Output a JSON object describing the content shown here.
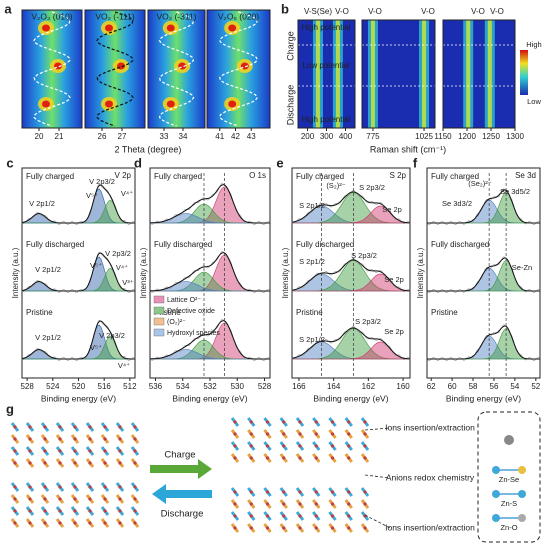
{
  "a": {
    "label": "a",
    "titles": [
      "V₂O₃ (010)",
      "VO₂ (-111)",
      "VO₂ (-311)",
      "V₂O₅ (020)"
    ],
    "xticks": [
      [
        "20",
        "21"
      ],
      [
        "26",
        "27"
      ],
      [
        "33",
        "34"
      ],
      [
        "41",
        "42",
        "43"
      ]
    ],
    "xlabel": "2 Theta (degree)"
  },
  "b": {
    "label": "b",
    "peaks": [
      "V-S(Se)",
      "V-O",
      "V-O",
      "V-O",
      "V-O",
      "V-O"
    ],
    "potentials": [
      "High potential",
      "Low potential",
      "High potential"
    ],
    "sides": [
      "Charge",
      "Discharge"
    ],
    "colorbar": [
      "High",
      "Low"
    ],
    "xticks": [
      [
        "200",
        "300",
        "400"
      ],
      [
        "775",
        "1025"
      ],
      [
        "1150",
        "1200",
        "1250",
        "1300"
      ]
    ],
    "xlabel": "Raman shift (cm⁻¹)"
  },
  "c": {
    "label": "c",
    "states": [
      "Fully charged",
      "Fully discharged",
      "Pristine"
    ],
    "core": "V 2p",
    "annotations": [
      "V 2p1/2",
      "V 2p3/2",
      "V⁵⁺",
      "V⁴⁺",
      "V 2p1/2",
      "V 2p3/2",
      "V⁵⁺",
      "V⁴⁺",
      "V³⁺",
      "V 2p1/2",
      "V 2p3/2",
      "V⁵⁺",
      "V⁴⁺"
    ],
    "ylabel": "Intensity (a.u.)",
    "xticks": [
      "528",
      "524",
      "520",
      "516",
      "512"
    ],
    "xlabel": "Binding energy (eV)"
  },
  "d": {
    "label": "d",
    "states": [
      "Fully charged",
      "Fully discharged",
      "Pristine"
    ],
    "core": "O 1s",
    "legend": [
      "Lattice O²⁻",
      "Defective oxide",
      "(O₂)²⁻",
      "Hydroxyl species"
    ],
    "ylabel": "Intensity (a.u.)",
    "xticks": [
      "536",
      "534",
      "532",
      "530",
      "528"
    ],
    "xlabel": "Binding energy (eV)"
  },
  "e": {
    "label": "e",
    "states": [
      "Fully charged",
      "Fully discharged",
      "Pristine"
    ],
    "core": "S 2p",
    "annotations": [
      "(S₂)²⁻",
      "S 2p3/2",
      "S 2p1/2",
      "Se 2p",
      "S 2p1/2",
      "S 2p3/2",
      "Se 2p",
      "S 2p1/2",
      "S 2p3/2",
      "Se 2p"
    ],
    "ylabel": "Intensity (a.u.)",
    "xticks": [
      "166",
      "164",
      "162",
      "160"
    ],
    "xlabel": "Binding energy (eV)"
  },
  "f": {
    "label": "f",
    "states": [
      "Fully charged",
      "Fully discharged",
      "Pristine"
    ],
    "core": "Se 3d",
    "annotations": [
      "(Se₂)²⁻",
      "Se 3d5/2",
      "Se 3d3/2",
      "Se-Zn"
    ],
    "ylabel": "Intensity (a.u.)",
    "xticks": [
      "62",
      "60",
      "58",
      "56",
      "54",
      "52"
    ],
    "xlabel": "Binding energy (eV)"
  },
  "g": {
    "label": "g",
    "arrows": [
      "Charge",
      "Discharge"
    ],
    "callouts": [
      "Ions insertion/extraction",
      "Anions redox chemistry",
      "Ions insertion/extraction"
    ],
    "legend": [
      "Zn-Se",
      "Zn-S",
      "Zn-O"
    ]
  }
}
